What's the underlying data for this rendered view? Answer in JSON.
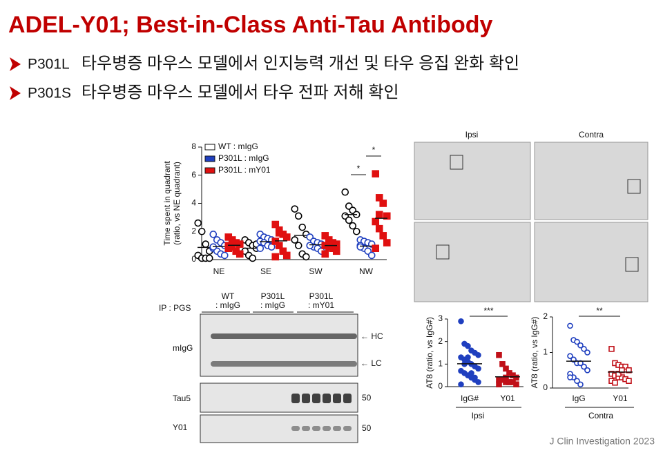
{
  "header": {
    "title": "ADEL-Y01; Best-in-Class Anti-Tau Antibody",
    "bullets": [
      {
        "prefix": "P301L",
        "text": "타우병증 마우스 모델에서 인지능력 개선 및 타우 응집 완화 확인"
      },
      {
        "prefix": "P301S",
        "text": "타우병증 마우스 모델에서 타우 전파 저해 확인"
      }
    ]
  },
  "quadrant_plot": {
    "y_label": [
      "Time spent in quadrant",
      "(ratio, vs NE quadrant)"
    ],
    "ylim": [
      0,
      8
    ],
    "yticks": [
      0,
      2,
      4,
      6,
      8
    ],
    "categories": [
      "NE",
      "SE",
      "SW",
      "NW"
    ],
    "series": [
      {
        "name": "WT : mIgG",
        "color": "#000000",
        "marker": "open-circle",
        "values": [
          [
            2.6,
            2.0,
            1.1,
            0.6,
            0.3,
            0.1,
            0.1,
            0.1
          ],
          [
            1.4,
            1.2,
            1.0,
            0.8,
            0.6,
            0.3,
            0.1,
            1.1
          ],
          [
            3.6,
            3.1,
            2.3,
            1.8,
            1.4,
            1.0,
            0.4,
            0.2
          ],
          [
            4.8,
            3.8,
            3.5,
            3.2,
            3.1,
            2.8,
            2.4,
            2.0
          ]
        ]
      },
      {
        "name": "P301L : mIgG",
        "color": "#1f3fbf",
        "marker": "open-circle",
        "values": [
          [
            1.8,
            1.4,
            1.2,
            1.0,
            0.8,
            0.6,
            0.4,
            0.3,
            0.9
          ],
          [
            1.8,
            1.6,
            1.5,
            1.4,
            1.3,
            1.2,
            1.0,
            0.9,
            0.8
          ],
          [
            1.6,
            1.3,
            1.2,
            1.1,
            1.0,
            0.9,
            0.8,
            0.6,
            1.0
          ],
          [
            1.4,
            1.3,
            1.2,
            1.1,
            1.0,
            0.8,
            0.6,
            0.3,
            0.9
          ]
        ]
      },
      {
        "name": "P301L : mY01",
        "color": "#e01010",
        "marker": "filled-square",
        "values": [
          [
            1.6,
            1.4,
            1.2,
            1.1,
            1.0,
            0.9,
            0.6,
            0.4,
            0.8,
            1.2
          ],
          [
            2.5,
            2.1,
            1.8,
            1.6,
            1.3,
            1.0,
            0.6,
            0.3,
            0.2,
            1.9
          ],
          [
            1.7,
            1.4,
            1.2,
            1.1,
            1.0,
            0.9,
            0.8,
            0.6,
            0.4,
            0.9
          ],
          [
            6.1,
            4.4,
            4.0,
            3.1,
            2.7,
            2.2,
            1.7,
            1.2,
            0.8,
            3.2
          ]
        ]
      }
    ],
    "significance": [
      "*",
      "*"
    ]
  },
  "blot": {
    "ip": "IP : PGS",
    "lanes": [
      [
        "WT",
        ": mIgG"
      ],
      [
        "P301L",
        ": mIgG"
      ],
      [
        "P301L",
        ": mY01"
      ]
    ],
    "rows": [
      "mIgG",
      "Tau5",
      "Y01"
    ],
    "markers": [
      "← HC",
      "← LC"
    ],
    "mw": [
      "50",
      "50"
    ]
  },
  "histology": {
    "labels": [
      "Ipsi",
      "Contra"
    ]
  },
  "at8_plots": [
    {
      "y_label": "AT8 (ratio, vs IgG#)",
      "ylim": [
        0,
        3
      ],
      "yticks": [
        0,
        1,
        2,
        3
      ],
      "groups": [
        "IgG#",
        "Y01"
      ],
      "values": [
        [
          2.9,
          1.9,
          1.8,
          1.6,
          1.5,
          1.4,
          1.3,
          1.2,
          1.1,
          1.0,
          0.9,
          0.8,
          0.7,
          0.6,
          0.5,
          0.4,
          0.3,
          0.2,
          0.1,
          1.0,
          1.3,
          0.6,
          0.4,
          0.8
        ],
        [
          1.4,
          1.0,
          0.8,
          0.6,
          0.5,
          0.4,
          0.3,
          0.3,
          0.2,
          0.2,
          0.2,
          0.1,
          0.1,
          0.3,
          0.4,
          0.2
        ]
      ],
      "colors": [
        "#1f3fbf",
        "#c01018"
      ],
      "markers": [
        "filled-circle",
        "filled-square"
      ],
      "significance": "***",
      "region": "Ipsi"
    },
    {
      "y_label": "AT8 (ratio, vs IgG#)",
      "ylim": [
        0,
        2
      ],
      "yticks": [
        0,
        1,
        2
      ],
      "groups": [
        "IgG",
        "Y01"
      ],
      "values": [
        [
          1.75,
          1.35,
          1.3,
          1.2,
          1.1,
          1.0,
          0.9,
          0.8,
          0.7,
          0.7,
          0.6,
          0.5,
          0.4,
          0.3,
          0.2,
          0.1,
          0.6,
          0.5,
          0.3,
          0.8
        ],
        [
          1.1,
          0.7,
          0.65,
          0.6,
          0.6,
          0.5,
          0.4,
          0.35,
          0.3,
          0.3,
          0.25,
          0.2,
          0.2,
          0.15,
          0.4,
          0.5
        ]
      ],
      "colors": [
        "#1f3fbf",
        "#c01018"
      ],
      "markers": [
        "open-circle",
        "open-square"
      ],
      "significance": "**",
      "region": "Contra"
    }
  ],
  "footer": "J Clin Investigation 2023"
}
